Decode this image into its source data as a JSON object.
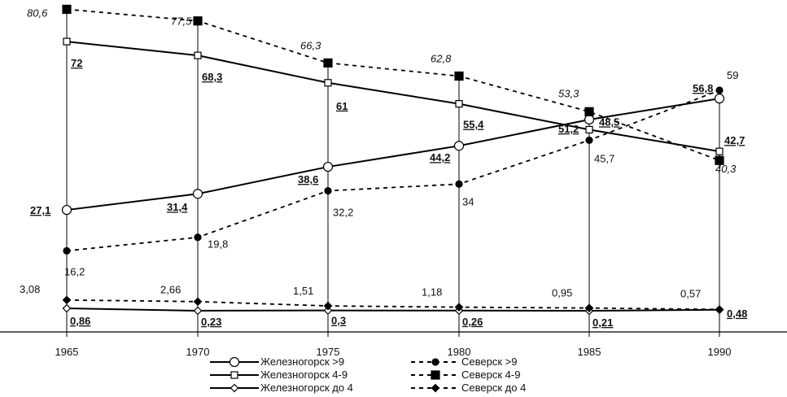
{
  "chart_data": {
    "type": "line",
    "x": [
      1965,
      1970,
      1975,
      1980,
      1985,
      1990
    ],
    "ylim": [
      0,
      82
    ],
    "grid": false,
    "legend_position": "bottom",
    "series": [
      {
        "name": "Железногорск >9",
        "style": "solid",
        "marker": "circle-open",
        "values": [
          27.1,
          31.4,
          38.6,
          44.2,
          51.2,
          56.8
        ],
        "labels": [
          "27,1",
          "31,4",
          "38,6",
          "44,2",
          "51,2",
          "56,8"
        ],
        "label_style": "bold"
      },
      {
        "name": "Железногорск 4-9",
        "style": "solid",
        "marker": "square-open",
        "values": [
          72,
          68.3,
          61,
          55.4,
          48.5,
          42.7
        ],
        "labels": [
          "72",
          "68,3",
          "61",
          "55,4",
          "48,5",
          "42,7"
        ],
        "label_style": "bold"
      },
      {
        "name": "Железногорск до 4",
        "style": "solid",
        "marker": "diamond-open",
        "values": [
          0.86,
          0.23,
          0.3,
          0.26,
          0.21,
          0.48
        ],
        "labels": [
          "0,86",
          "0,23",
          "0,3",
          "0,26",
          "0,21",
          "0,48"
        ],
        "label_style": "bold"
      },
      {
        "name": "Северск >9",
        "style": "dashed",
        "marker": "circle-filled",
        "values": [
          16.2,
          19.8,
          32.2,
          34,
          45.7,
          59
        ],
        "labels": [
          "16,2",
          "19,8",
          "32,2",
          "34",
          "45,7",
          "59"
        ],
        "label_style": "plain"
      },
      {
        "name": "Северск 4-9",
        "style": "dashed",
        "marker": "square-filled",
        "values": [
          80.6,
          77.5,
          66.3,
          62.8,
          53.3,
          40.3
        ],
        "labels": [
          "80,6",
          "77,5",
          "66,3",
          "62,8",
          "53,3",
          "40,3"
        ],
        "label_style": "italic"
      },
      {
        "name": "Северск до 4",
        "style": "dashed",
        "marker": "diamond-filled",
        "values": [
          3.08,
          2.66,
          1.51,
          1.18,
          0.95,
          0.57
        ],
        "labels": [
          "3,08",
          "2,66",
          "1,51",
          "1,18",
          "0,95",
          "0,57"
        ],
        "label_style": "plain"
      }
    ]
  }
}
